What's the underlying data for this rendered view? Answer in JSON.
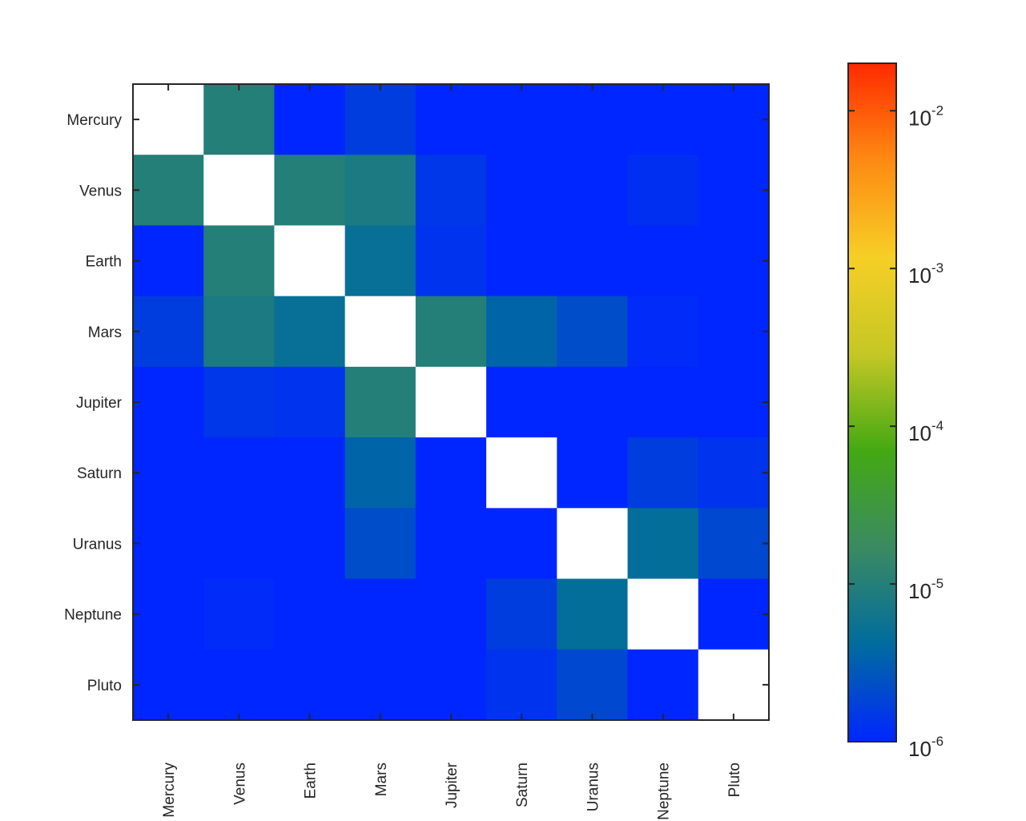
{
  "chart_data": {
    "type": "heatmap",
    "title": "",
    "xlabel": "",
    "ylabel": "",
    "rows": [
      "Mercury",
      "Venus",
      "Earth",
      "Mars",
      "Jupiter",
      "Saturn",
      "Uranus",
      "Neptune",
      "Pluto"
    ],
    "columns": [
      "Mercury",
      "Venus",
      "Earth",
      "Mars",
      "Jupiter",
      "Saturn",
      "Uranus",
      "Neptune",
      "Pluto"
    ],
    "values": [
      [
        null,
        1e-05,
        1e-06,
        1.6e-06,
        1e-06,
        1e-06,
        1e-06,
        1e-06,
        1e-06
      ],
      [
        1e-05,
        null,
        1e-05,
        8e-06,
        1.4e-06,
        1e-06,
        1e-06,
        1.2e-06,
        1e-06
      ],
      [
        1e-06,
        1e-05,
        null,
        5e-06,
        1.3e-06,
        1e-06,
        1e-06,
        1e-06,
        1e-06
      ],
      [
        1.6e-06,
        8e-06,
        5e-06,
        null,
        1e-05,
        3.5e-06,
        2.2e-06,
        1.1e-06,
        1e-06
      ],
      [
        1e-06,
        1.4e-06,
        1.3e-06,
        1e-05,
        null,
        1e-06,
        1e-06,
        1e-06,
        1e-06
      ],
      [
        1e-06,
        1e-06,
        1e-06,
        3.5e-06,
        1e-06,
        null,
        1e-06,
        1.6e-06,
        1.3e-06
      ],
      [
        1e-06,
        1e-06,
        1e-06,
        2.2e-06,
        1e-06,
        1e-06,
        null,
        4.5e-06,
        2e-06
      ],
      [
        1e-06,
        1.1e-06,
        1e-06,
        1e-06,
        1e-06,
        1.6e-06,
        4.5e-06,
        null,
        1e-06
      ],
      [
        1e-06,
        1e-06,
        1e-06,
        1e-06,
        1e-06,
        1.3e-06,
        2e-06,
        1e-06,
        null
      ]
    ],
    "colorbar": {
      "scale": "log",
      "min": 1e-06,
      "max": 0.02,
      "ticks": [
        {
          "value": 1e-06,
          "base": "10",
          "exp": "-6"
        },
        {
          "value": 1e-05,
          "base": "10",
          "exp": "-5"
        },
        {
          "value": 0.0001,
          "base": "10",
          "exp": "-4"
        },
        {
          "value": 0.001,
          "base": "10",
          "exp": "-3"
        },
        {
          "value": 0.01,
          "base": "10",
          "exp": "-2"
        }
      ],
      "colormap": [
        "#0026ff",
        "#006c9e",
        "#3a8a62",
        "#43a913",
        "#c5c726",
        "#f6cf26",
        "#fd8a13",
        "#ff2a00"
      ]
    },
    "diagonal_color": "#ffffff",
    "grid": false
  }
}
